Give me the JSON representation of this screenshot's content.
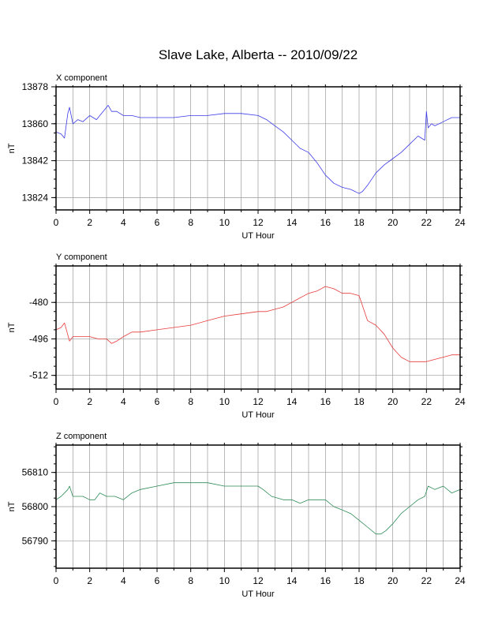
{
  "title": "Slave Lake, Alberta -- 2010/09/22",
  "chart_data": [
    {
      "type": "line",
      "title": "X component",
      "xlabel": "UT Hour",
      "ylabel": "nT",
      "xlim": [
        0,
        24
      ],
      "ylim": [
        13818,
        13878
      ],
      "xticks": [
        0,
        2,
        4,
        6,
        8,
        10,
        12,
        14,
        16,
        18,
        20,
        22,
        24
      ],
      "yticks": [
        13824,
        13842,
        13860,
        13878
      ],
      "grid": true,
      "color": "#3a3ae8",
      "series": [
        {
          "x": [
            0,
            0.3,
            0.5,
            0.7,
            0.8,
            1.0,
            1.3,
            1.6,
            2.0,
            2.4,
            2.8,
            3.1,
            3.3,
            3.6,
            4.0,
            4.5,
            5.0,
            6.0,
            7.0,
            8.0,
            9.0,
            10.0,
            11.0,
            12.0,
            12.5,
            13.0,
            13.5,
            14.0,
            14.5,
            15.0,
            15.5,
            16.0,
            16.5,
            17.0,
            17.5,
            18.0,
            18.2,
            18.5,
            19.0,
            19.5,
            20.0,
            20.5,
            21.0,
            21.5,
            21.9,
            22.0,
            22.1,
            22.3,
            22.5,
            23.0,
            23.5,
            24.0
          ],
          "y": [
            13856,
            13855,
            13853,
            13865,
            13868,
            13860,
            13862,
            13861,
            13864,
            13862,
            13866,
            13869,
            13866,
            13866,
            13864,
            13864,
            13863,
            13863,
            13863,
            13864,
            13864,
            13865,
            13865,
            13864,
            13862,
            13859,
            13856,
            13852,
            13848,
            13846,
            13841,
            13835,
            13831,
            13829,
            13828,
            13826,
            13827,
            13830,
            13836,
            13840,
            13843,
            13846,
            13850,
            13854,
            13852,
            13866,
            13858,
            13860,
            13859,
            13861,
            13863,
            13863
          ]
        }
      ]
    },
    {
      "type": "line",
      "title": "Y component",
      "xlabel": "UT Hour",
      "ylabel": "nT",
      "xlim": [
        0,
        24
      ],
      "ylim": [
        -518,
        -464
      ],
      "xticks": [
        0,
        2,
        4,
        6,
        8,
        10,
        12,
        14,
        16,
        18,
        20,
        22,
        24
      ],
      "yticks": [
        -480,
        -496,
        -512
      ],
      "grid": true,
      "color": "#e83a3a",
      "series": [
        {
          "x": [
            0,
            0.3,
            0.5,
            0.8,
            1.0,
            1.5,
            2.0,
            2.5,
            3.0,
            3.3,
            3.6,
            4.0,
            4.5,
            5.0,
            6.0,
            7.0,
            8.0,
            9.0,
            10.0,
            11.0,
            12.0,
            12.5,
            13.0,
            13.5,
            14.0,
            14.5,
            15.0,
            15.5,
            16.0,
            16.5,
            17.0,
            17.5,
            18.0,
            18.5,
            19.0,
            19.5,
            20.0,
            20.5,
            21.0,
            21.5,
            22.0,
            22.5,
            23.0,
            23.5,
            24.0
          ],
          "y": [
            -492,
            -491,
            -489,
            -497,
            -495,
            -495,
            -495,
            -496,
            -496,
            -498,
            -497,
            -495,
            -493,
            -493,
            -492,
            -491,
            -490,
            -488,
            -486,
            -485,
            -484,
            -484,
            -483,
            -482,
            -480,
            -478,
            -476,
            -475,
            -473,
            -474,
            -476,
            -476,
            -477,
            -488,
            -490,
            -494,
            -500,
            -504,
            -506,
            -506,
            -506,
            -505,
            -504,
            -503,
            -503
          ]
        }
      ]
    },
    {
      "type": "line",
      "title": "Z component",
      "xlabel": "UT Hour",
      "ylabel": "nT",
      "xlim": [
        0,
        24
      ],
      "ylim": [
        56782,
        56818
      ],
      "xticks": [
        0,
        2,
        4,
        6,
        8,
        10,
        12,
        14,
        16,
        18,
        20,
        22,
        24
      ],
      "yticks": [
        56790,
        56800,
        56810
      ],
      "grid": true,
      "color": "#2e8b57",
      "series": [
        {
          "x": [
            0,
            0.3,
            0.5,
            0.7,
            0.8,
            1.0,
            1.3,
            1.6,
            2.0,
            2.3,
            2.6,
            3.0,
            3.5,
            4.0,
            4.5,
            5.0,
            6.0,
            7.0,
            8.0,
            9.0,
            10.0,
            11.0,
            12.0,
            12.3,
            12.8,
            13.5,
            14.0,
            14.5,
            15.0,
            15.5,
            16.0,
            16.5,
            17.0,
            17.5,
            18.0,
            18.5,
            19.0,
            19.3,
            19.6,
            20.0,
            20.5,
            21.0,
            21.5,
            21.9,
            22.1,
            22.5,
            23.0,
            23.5,
            24.0
          ],
          "y": [
            56802,
            56803,
            56804,
            56805,
            56806,
            56803,
            56803,
            56803,
            56802,
            56802,
            56804,
            56803,
            56803,
            56802,
            56804,
            56805,
            56806,
            56807,
            56807,
            56807,
            56806,
            56806,
            56806,
            56805,
            56803,
            56802,
            56802,
            56801,
            56802,
            56802,
            56802,
            56800,
            56799,
            56798,
            56796,
            56794,
            56792,
            56792,
            56793,
            56795,
            56798,
            56800,
            56802,
            56803,
            56806,
            56805,
            56806,
            56804,
            56805
          ]
        }
      ]
    }
  ]
}
